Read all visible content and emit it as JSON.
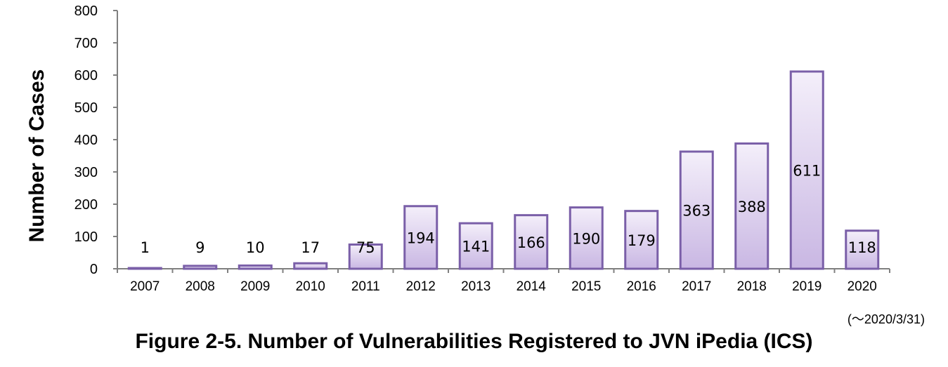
{
  "chart_data": {
    "type": "bar",
    "title": "Figure 2-5. Number of Vulnerabilities Registered to JVN iPedia (ICS)",
    "note": "(～2020/3/31)",
    "xlabel": "",
    "ylabel": "Number of Cases",
    "ylim": [
      0,
      800
    ],
    "yticks": [
      0,
      100,
      200,
      300,
      400,
      500,
      600,
      700,
      800
    ],
    "categories": [
      "2007",
      "2008",
      "2009",
      "2010",
      "2011",
      "2012",
      "2013",
      "2014",
      "2015",
      "2016",
      "2017",
      "2018",
      "2019",
      "2020"
    ],
    "values": [
      1,
      9,
      10,
      17,
      75,
      194,
      141,
      166,
      190,
      179,
      363,
      388,
      611,
      118
    ],
    "grid": false,
    "legend": "none",
    "colors": {
      "bar_top": "#f4effa",
      "bar_bottom": "#c9b7e3",
      "bar_border": "#7a5fa8",
      "axis": "#808080"
    }
  }
}
